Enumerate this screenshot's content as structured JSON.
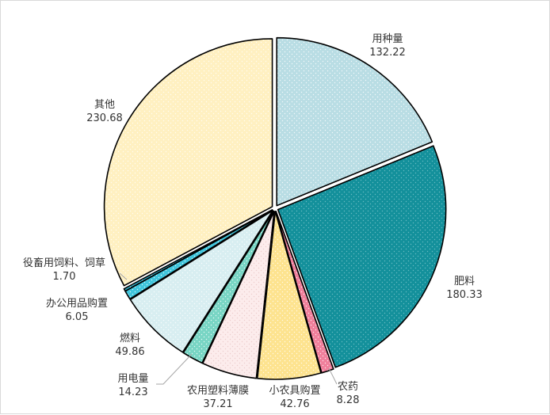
{
  "chart_data": {
    "type": "pie",
    "title": "",
    "slices": [
      {
        "label": "用种量",
        "value_text": "132.22",
        "value": 132.22,
        "color": "#b9dde4",
        "dot": "#ffffff"
      },
      {
        "label": "肥料",
        "value_text": "180.33",
        "value": 180.33,
        "color": "#13909b",
        "dot": "#7cc5cc"
      },
      {
        "label": "农药",
        "value_text": "8.28",
        "value": 8.28,
        "color": "#f07f9b",
        "dot": "#ffffff"
      },
      {
        "label": "小农具购置",
        "value_text": "42.76",
        "value": 42.76,
        "color": "#fde38f",
        "dot": "#ffffff"
      },
      {
        "label": "农用塑料薄膜",
        "value_text": "37.21",
        "value": 37.21,
        "color": "#fcecec",
        "dot": "#e8c4c4"
      },
      {
        "label": "用电量",
        "value_text": "14.23",
        "value": 14.23,
        "color": "#78d5c4",
        "dot": "#ffffff"
      },
      {
        "label": "燃料",
        "value_text": "49.86",
        "value": 49.86,
        "color": "#d8eef1",
        "dot": "#ffffff"
      },
      {
        "label": "办公用品购置",
        "value_text": "6.05",
        "value": 6.05,
        "color": "#3fc5dc",
        "dot": "#ffffff"
      },
      {
        "label": "役畜用饲料、饲草",
        "value_text": "1.70",
        "value": 1.7,
        "color": "#2aa9c2",
        "dot": "#ffffff"
      },
      {
        "label": "其他",
        "value_text": "230.68",
        "value": 230.68,
        "color": "#fff0c1",
        "dot": "#ffffff"
      }
    ]
  }
}
